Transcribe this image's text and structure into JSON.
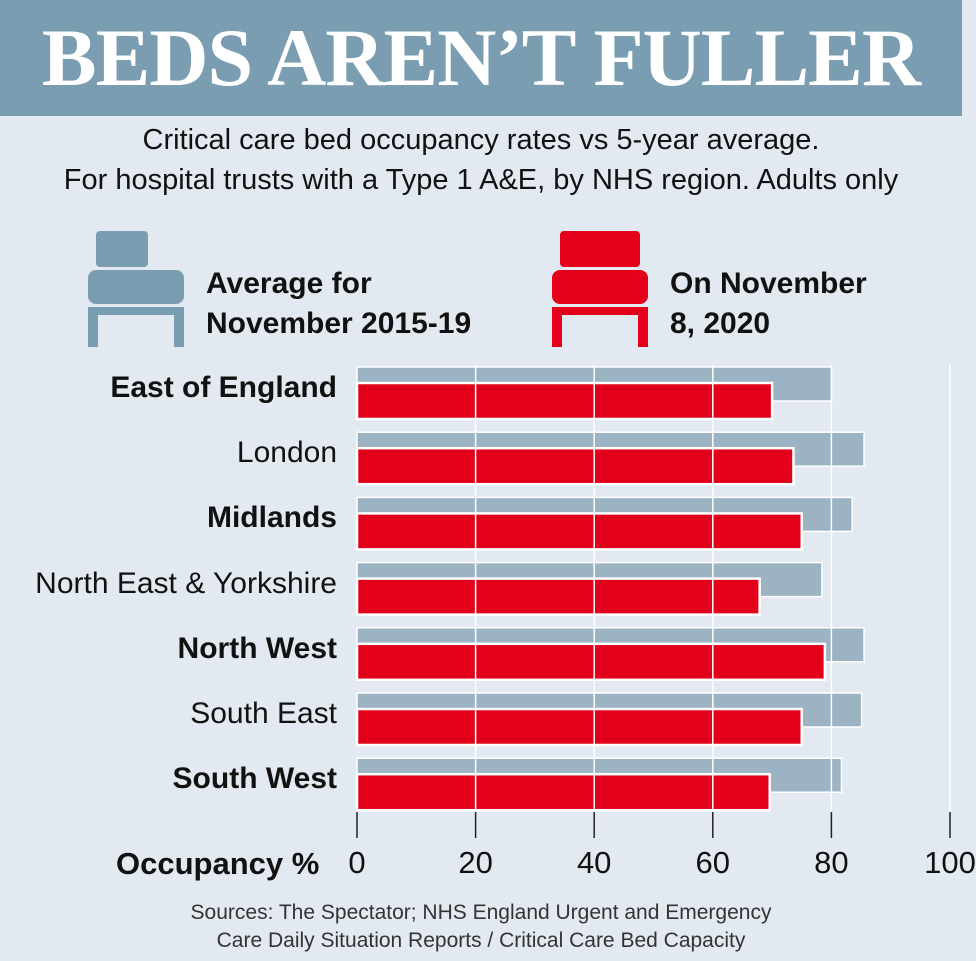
{
  "title": "BEDS AREN’T FULLER",
  "subtitle1": "Critical care bed occupancy rates vs 5-year average.",
  "subtitle2": "For hospital trusts with a Type 1 A&E, by NHS region. Adults only",
  "chart_data": {
    "type": "bar",
    "orientation": "horizontal",
    "categories": [
      "East of England",
      "London",
      "Midlands",
      "North East & Yorkshire",
      "North West",
      "South East",
      "South West"
    ],
    "series": [
      {
        "name": "Average for November 2015-19",
        "color": "#9bb3c2",
        "values": [
          80.0,
          85.5,
          83.5,
          78.4,
          85.5,
          85.1,
          81.7
        ]
      },
      {
        "name": "On November 8, 2020",
        "color": "#e2001a",
        "values": [
          70.0,
          73.6,
          75.0,
          67.9,
          78.9,
          75.0,
          69.6
        ]
      }
    ],
    "legend": [
      [
        "Average for",
        "November 2015-19"
      ],
      [
        "On November",
        "8, 2020"
      ]
    ],
    "xlabel": "Occupancy %",
    "xlim": [
      0,
      100
    ],
    "xticks": [
      "0",
      "20",
      "40",
      "60",
      "80",
      "100"
    ],
    "grid": true
  },
  "sources": [
    "Sources: The Spectator; NHS England Urgent and Emergency",
    "Care Daily Situation Reports / Critical Care Bed Capacity"
  ]
}
